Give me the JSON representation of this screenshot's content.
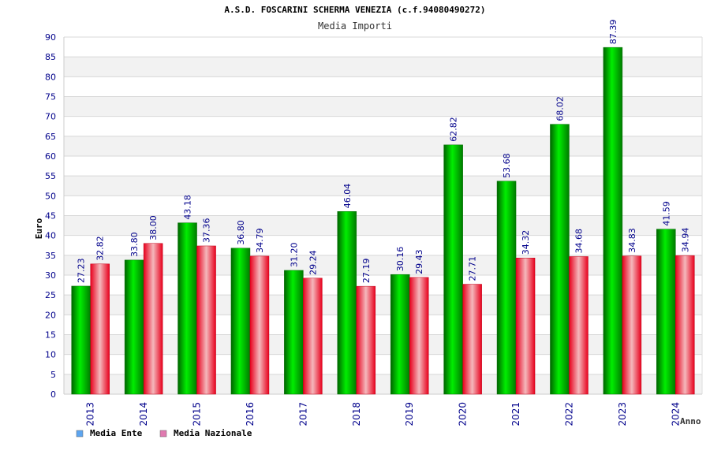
{
  "chart_data": {
    "type": "bar",
    "title": "A.S.D. FOSCARINI SCHERMA VENEZIA (c.f.94080490272)",
    "subtitle": "Media Importi",
    "xlabel": "Anno",
    "ylabel": "Euro",
    "ylim": [
      0,
      90
    ],
    "ytick_step": 5,
    "grid": true,
    "legend_position": "bottom-left",
    "categories": [
      "2013",
      "2014",
      "2015",
      "2016",
      "2017",
      "2018",
      "2019",
      "2020",
      "2021",
      "2022",
      "2023",
      "2024"
    ],
    "series": [
      {
        "name": "Media Ente",
        "color": "#00b000",
        "legend_color": "#5da5f0",
        "values": [
          27.23,
          33.8,
          43.18,
          36.8,
          31.2,
          46.04,
          30.16,
          62.82,
          53.68,
          68.02,
          87.39,
          41.59
        ]
      },
      {
        "name": "Media Nazionale",
        "color": "#e8001c",
        "legend_color": "#e07ab0",
        "values": [
          32.82,
          38.0,
          37.36,
          34.79,
          29.24,
          27.19,
          29.43,
          27.71,
          34.32,
          34.68,
          34.83,
          34.94
        ]
      }
    ],
    "label_color": "#00008b"
  }
}
